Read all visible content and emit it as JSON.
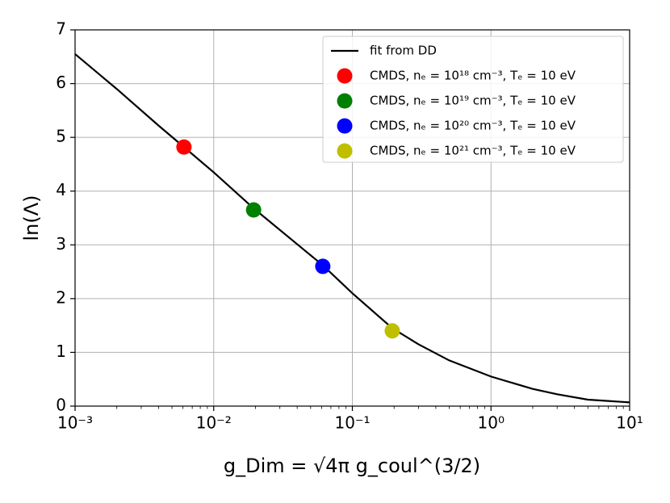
{
  "chart_data": {
    "type": "line",
    "xlabel": "g_Dim = √4π g_coul^(3/2)",
    "ylabel": "ln(Λ)",
    "xscale": "log",
    "grid": true,
    "legend": "upper right",
    "xlim": [
      0.001,
      10
    ],
    "ylim": [
      0,
      7
    ],
    "xticks": [
      {
        "value": 0.001,
        "label": "10⁻³"
      },
      {
        "value": 0.01,
        "label": "10⁻²"
      },
      {
        "value": 0.1,
        "label": "10⁻¹"
      },
      {
        "value": 1,
        "label": "10⁰"
      },
      {
        "value": 10,
        "label": "10¹"
      }
    ],
    "yticks": [
      0,
      1,
      2,
      3,
      4,
      5,
      6,
      7
    ],
    "series": [
      {
        "name": "fit from DD",
        "kind": "line",
        "color": "#000000",
        "x": [
          0.001,
          0.002,
          0.004,
          0.0061,
          0.01,
          0.0194,
          0.0612,
          0.1,
          0.194,
          0.3,
          0.5,
          1,
          2,
          3,
          5,
          10
        ],
        "values": [
          6.55,
          5.9,
          5.22,
          4.82,
          4.35,
          3.68,
          2.62,
          2.1,
          1.45,
          1.15,
          0.85,
          0.55,
          0.32,
          0.22,
          0.12,
          0.07
        ]
      },
      {
        "name": "CMDS, nₑ = 10¹⁸ cm⁻³, Tₑ = 10 eV",
        "kind": "scatter",
        "color": "#ff0000",
        "x": [
          0.0061
        ],
        "values": [
          4.82
        ]
      },
      {
        "name": "CMDS, nₑ = 10¹⁹ cm⁻³, Tₑ = 10 eV",
        "kind": "scatter",
        "color": "#008000",
        "x": [
          0.0194
        ],
        "values": [
          3.65
        ]
      },
      {
        "name": "CMDS, nₑ = 10²⁰ cm⁻³, Tₑ = 10 eV",
        "kind": "scatter",
        "color": "#0000ff",
        "x": [
          0.0612
        ],
        "values": [
          2.6
        ]
      },
      {
        "name": "CMDS, nₑ = 10²¹ cm⁻³, Tₑ = 10 eV",
        "kind": "scatter",
        "color": "#bfbf00",
        "x": [
          0.194
        ],
        "values": [
          1.4
        ]
      }
    ]
  }
}
